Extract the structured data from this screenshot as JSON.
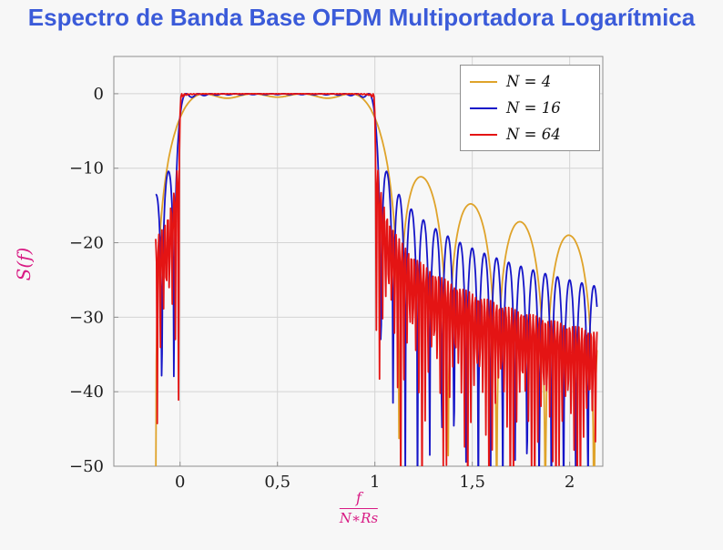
{
  "title": "Espectro de Banda Base OFDM Multiportadora Logarítmica",
  "colors": {
    "title": "#3b5bd9",
    "axis_label": "#d81b84",
    "tick_text": "#1c1c1c",
    "grid": "#d4d4d4",
    "frame": "#8f8f8f",
    "background": "#f7f7f7",
    "legend_bg": "#ffffff"
  },
  "chart_data": {
    "type": "line",
    "title": "Espectro de Banda Base OFDM Multiportadora Logarítmica",
    "ylabel": "S(f)",
    "xlabel_numerator": "f",
    "xlabel_denominator": "N∗Rs",
    "xlim": [
      -0.34,
      2.17
    ],
    "ylim": [
      -50,
      5
    ],
    "x_domain": [
      -0.125,
      2.14
    ],
    "floor_db": -55,
    "grid": true,
    "legend_position": "top-right",
    "model": "S_dB(x) = 10*log10( sum_{k=0..N-1} sinc^2(N*x - k - 0.5) ), sinc(t)=sin(pi*t)/(pi*t), x = f/(N*Rs); in-band (0..1) flat at 0 dB, out-of-band sidelobes decay from about -9 dB (N=4) / -13 dB (N=16,64) down past -50 dB",
    "xticks": [
      {
        "value": 0,
        "label": "0"
      },
      {
        "value": 0.5,
        "label": "0,5"
      },
      {
        "value": 1,
        "label": "1"
      },
      {
        "value": 1.5,
        "label": "1,5"
      },
      {
        "value": 2,
        "label": "2"
      }
    ],
    "yticks": [
      {
        "value": 0,
        "label": "0"
      },
      {
        "value": -10,
        "label": "−10"
      },
      {
        "value": -20,
        "label": "−20"
      },
      {
        "value": -30,
        "label": "−30"
      },
      {
        "value": -40,
        "label": "−40"
      },
      {
        "value": -50,
        "label": "−50"
      }
    ],
    "series": [
      {
        "name": "N = 4",
        "N": 4,
        "color": "#dfa32a",
        "samples": 700
      },
      {
        "name": "N = 16",
        "N": 16,
        "color": "#1515c8",
        "samples": 900
      },
      {
        "name": "N = 64",
        "N": 64,
        "color": "#e41414",
        "samples": 560
      }
    ]
  }
}
